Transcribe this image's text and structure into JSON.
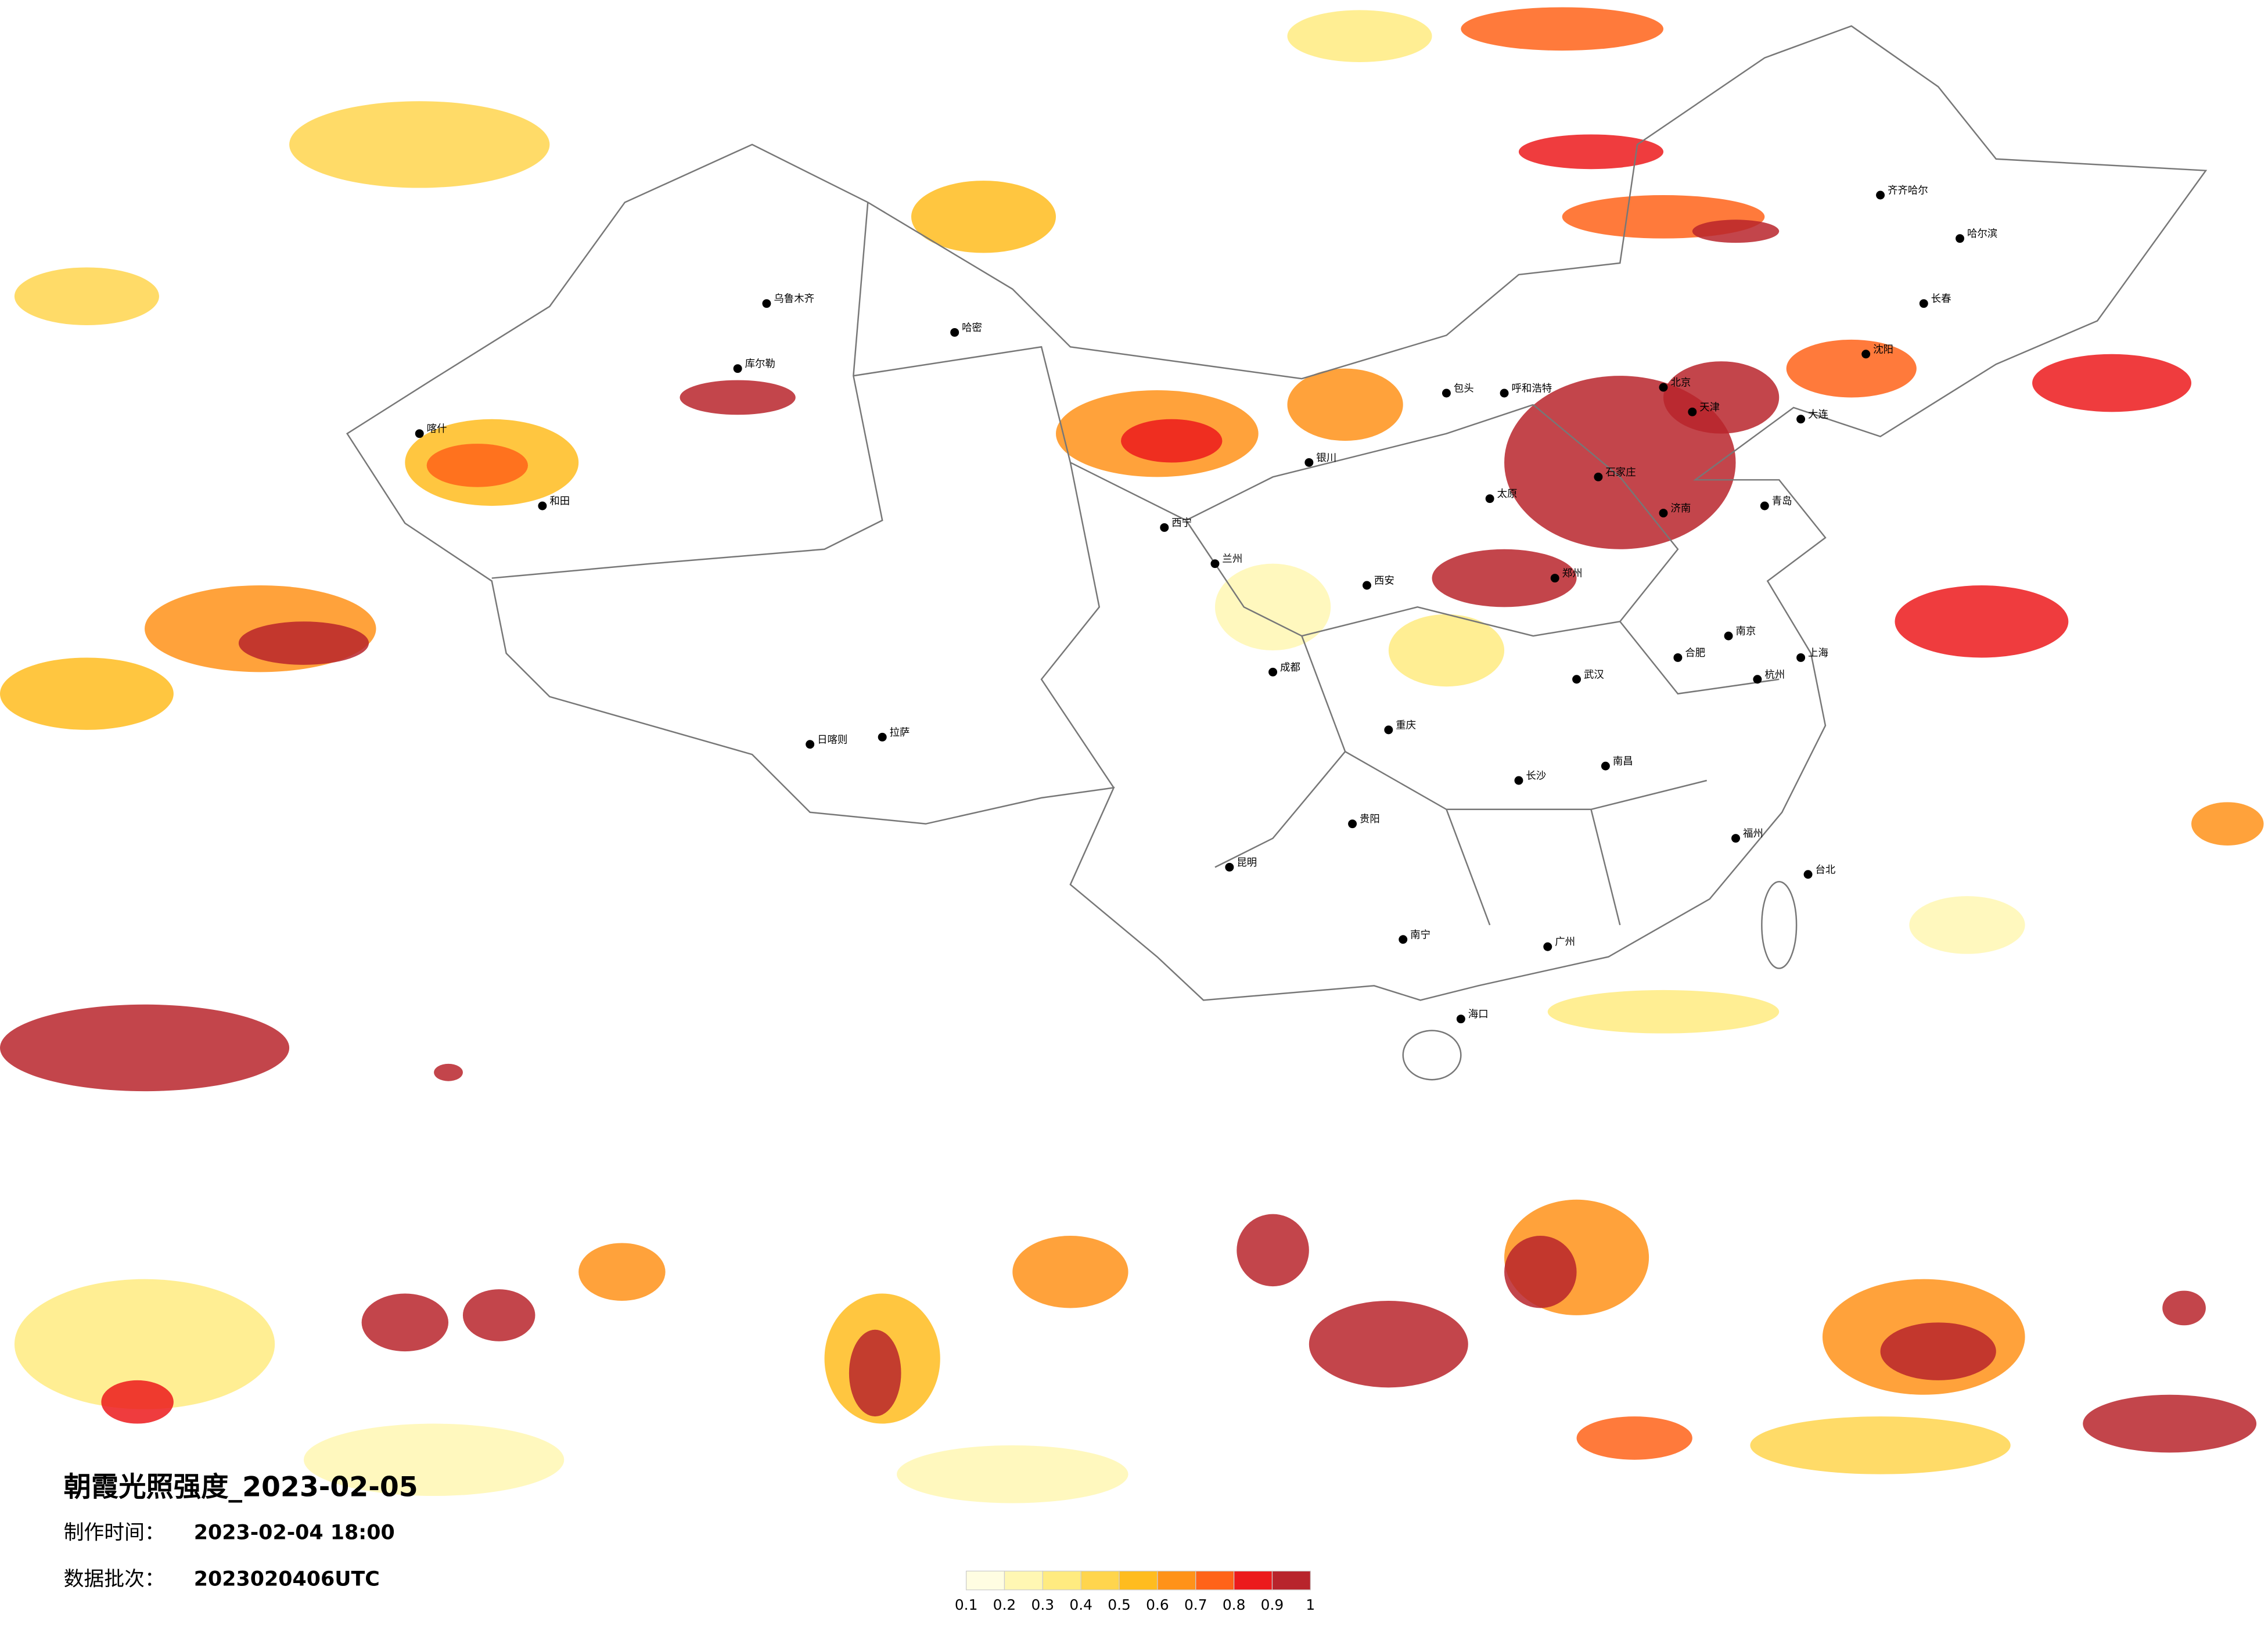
{
  "title": "朝霞光照强度_2023-02-05",
  "info": [
    {
      "label": "制作时间：",
      "value": "2023-02-04 18:00"
    },
    {
      "label": "数据批次：",
      "value": "2023020406UTC"
    }
  ],
  "colorbar": {
    "ticks": [
      0.1,
      0.2,
      0.3,
      0.4,
      0.5,
      0.6,
      0.7,
      0.8,
      0.9,
      1
    ],
    "colors": [
      "#fffde2",
      "#fff7b3",
      "#ffeb80",
      "#ffd54d",
      "#ffbc1f",
      "#ff9219",
      "#ff6319",
      "#ec1a1c",
      "#b8242c"
    ]
  },
  "cities": [
    "乌鲁木齐",
    "哈密",
    "库尔勒",
    "喀什",
    "和田",
    "拉萨",
    "日喀则",
    "西宁",
    "兰州",
    "银川",
    "呼和浩特",
    "包头",
    "北京",
    "天津",
    "石家庄",
    "太原",
    "济南",
    "青岛",
    "郑州",
    "西安",
    "成都",
    "重庆",
    "贵阳",
    "昆明",
    "南宁",
    "广州",
    "福州",
    "南昌",
    "长沙",
    "武汉",
    "合肥",
    "南京",
    "上海",
    "杭州",
    "海口",
    "台北",
    "沈阳",
    "大连",
    "长春",
    "哈尔滨",
    "齐齐哈尔"
  ]
}
